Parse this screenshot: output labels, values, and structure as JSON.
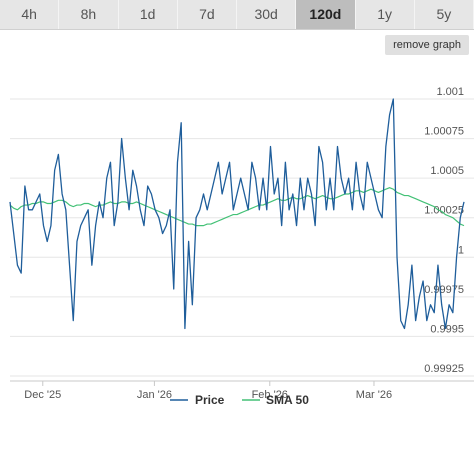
{
  "tabs": [
    {
      "label": "4h",
      "active": false
    },
    {
      "label": "8h",
      "active": false
    },
    {
      "label": "1d",
      "active": false
    },
    {
      "label": "7d",
      "active": false
    },
    {
      "label": "30d",
      "active": false
    },
    {
      "label": "120d",
      "active": true
    },
    {
      "label": "1y",
      "active": false
    },
    {
      "label": "5y",
      "active": false
    }
  ],
  "remove_graph_label": "remove graph",
  "colors": {
    "price": "#1f5e9b",
    "sma": "#43c176",
    "grid": "#e6e6e6"
  },
  "chart_data": {
    "type": "line",
    "title": "",
    "xlabel": "",
    "ylabel": "",
    "ylim": [
      0.99925,
      1.001
    ],
    "y_ticks": [
      {
        "value": 1.001,
        "label": "1.001"
      },
      {
        "value": 1.00075,
        "label": "1.00075"
      },
      {
        "value": 1.0005,
        "label": "1.0005"
      },
      {
        "value": 1.00025,
        "label": "1.00025"
      },
      {
        "value": 1.0,
        "label": "1"
      },
      {
        "value": 0.99975,
        "label": "0.99975"
      },
      {
        "value": 0.9995,
        "label": "0.9995"
      },
      {
        "value": 0.99925,
        "label": "0.99925"
      }
    ],
    "x_ticks": [
      {
        "index": 8,
        "label": "Dec '25"
      },
      {
        "index": 38,
        "label": "Jan '26"
      },
      {
        "index": 69,
        "label": "Feb '26"
      },
      {
        "index": 97,
        "label": "Mar '26"
      }
    ],
    "grid": true,
    "legend_position": "bottom-center",
    "series": [
      {
        "name": "Price",
        "values": [
          1.00035,
          1.00015,
          0.99995,
          0.9999,
          1.00045,
          1.0003,
          1.0003,
          1.00035,
          1.0004,
          1.0002,
          1.0001,
          1.0002,
          1.00055,
          1.00065,
          1.0004,
          1.0003,
          0.99995,
          0.9996,
          1.0001,
          1.0002,
          1.00025,
          1.0003,
          0.99995,
          1.0002,
          1.00035,
          1.00025,
          1.0005,
          1.0006,
          1.0002,
          1.00035,
          1.00075,
          1.0005,
          1.0003,
          1.00055,
          1.00045,
          1.0003,
          1.0002,
          1.00045,
          1.0004,
          1.0003,
          1.00025,
          1.00015,
          1.0002,
          1.0003,
          0.9998,
          1.0006,
          1.00085,
          0.99955,
          1.0001,
          0.9997,
          1.00025,
          1.0003,
          1.0004,
          1.0003,
          1.0004,
          1.0005,
          1.0006,
          1.0004,
          1.0005,
          1.0006,
          1.0003,
          1.0004,
          1.0005,
          1.0004,
          1.0003,
          1.0006,
          1.0005,
          1.0003,
          1.0005,
          1.0003,
          1.0007,
          1.0004,
          1.0005,
          1.0002,
          1.0006,
          1.0003,
          1.0004,
          1.0002,
          1.0005,
          1.0003,
          1.0005,
          1.0004,
          1.0002,
          1.0007,
          1.0006,
          1.0003,
          1.0005,
          1.0003,
          1.0007,
          1.0005,
          1.0004,
          1.0005,
          1.0003,
          1.0006,
          1.0004,
          1.0003,
          1.0006,
          1.0005,
          1.0004,
          1.0003,
          1.00025,
          1.0007,
          1.0009,
          1.001,
          1.0,
          0.9996,
          0.99955,
          0.9997,
          0.99995,
          0.9996,
          0.99975,
          0.99985,
          0.9996,
          0.9997,
          0.99965,
          0.99995,
          0.9997,
          0.99955,
          0.9997,
          0.99965,
          1.0,
          1.00025,
          1.00035
        ],
        "color": "#1f5e9b"
      },
      {
        "name": "SMA 50",
        "values": [
          1.00033,
          1.00031,
          1.0003,
          1.00032,
          1.00033,
          1.00033,
          1.00034,
          1.00034,
          1.00035,
          1.00035,
          1.00034,
          1.00034,
          1.00035,
          1.00036,
          1.00036,
          1.00035,
          1.00033,
          1.00032,
          1.00033,
          1.00033,
          1.00034,
          1.00034,
          1.00033,
          1.00032,
          1.00033,
          1.00033,
          1.00034,
          1.00035,
          1.00034,
          1.00034,
          1.00035,
          1.00035,
          1.00034,
          1.00034,
          1.00035,
          1.00034,
          1.00033,
          1.00032,
          1.00031,
          1.0003,
          1.00029,
          1.00028,
          1.00027,
          1.00026,
          1.00025,
          1.00024,
          1.00023,
          1.00022,
          1.00021,
          1.00021,
          1.0002,
          1.0002,
          1.0002,
          1.00021,
          1.00021,
          1.00022,
          1.00023,
          1.00024,
          1.00025,
          1.00026,
          1.00027,
          1.00027,
          1.00028,
          1.00029,
          1.0003,
          1.00031,
          1.00032,
          1.00033,
          1.00033,
          1.00034,
          1.00035,
          1.00036,
          1.00037,
          1.00036,
          1.00036,
          1.00037,
          1.00038,
          1.00037,
          1.00037,
          1.00038,
          1.00039,
          1.00038,
          1.00037,
          1.00038,
          1.00039,
          1.00038,
          1.00037,
          1.00037,
          1.00038,
          1.00039,
          1.0004,
          1.0004,
          1.00041,
          1.00042,
          1.00042,
          1.00041,
          1.00042,
          1.00043,
          1.00042,
          1.00041,
          1.00042,
          1.00043,
          1.00044,
          1.00043,
          1.00041,
          1.0004,
          1.00039,
          1.00039,
          1.00038,
          1.00037,
          1.00036,
          1.00035,
          1.00034,
          1.00033,
          1.00032,
          1.0003,
          1.00029,
          1.00027,
          1.00026,
          1.00025,
          1.00023,
          1.00021,
          1.0002
        ],
        "color": "#43c176"
      }
    ]
  }
}
